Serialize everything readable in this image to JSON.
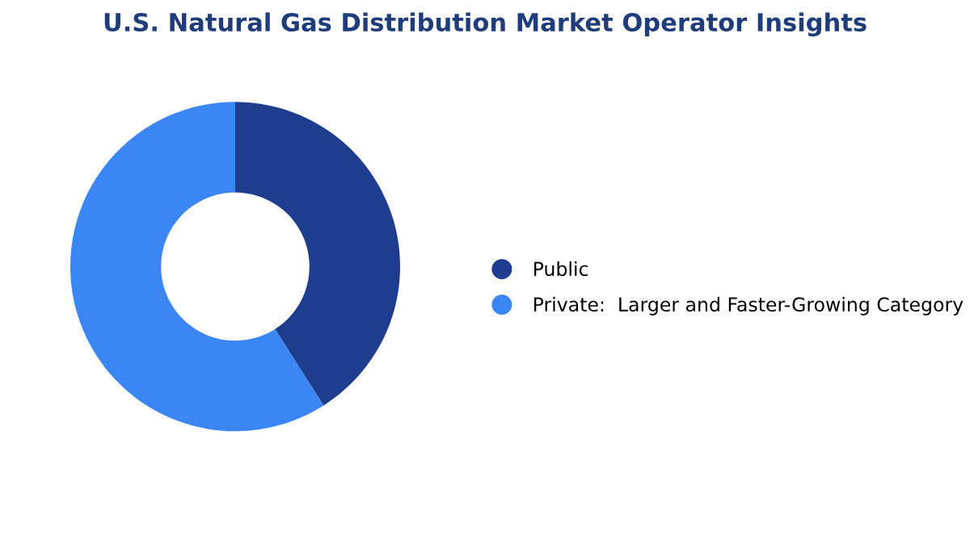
{
  "chart_data": {
    "type": "donut",
    "title": "U.S. Natural Gas Distribution Market Operator Insights",
    "categories": [
      "Public",
      "Private:  Larger and Faster-Growing Category"
    ],
    "values": [
      41,
      59
    ],
    "colors": [
      "#1f3d8f",
      "#3b86f5"
    ],
    "legend": "right"
  }
}
